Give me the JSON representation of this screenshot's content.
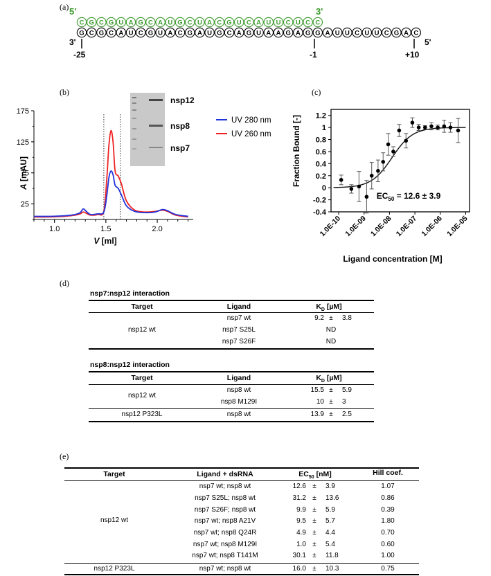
{
  "panel_labels": {
    "a": "(a)",
    "b": "(b)",
    "c": "(c)",
    "d": "(d)",
    "e": "(e)"
  },
  "rna": {
    "top_strand": [
      "C",
      "G",
      "C",
      "G",
      "U",
      "A",
      "G",
      "C",
      "A",
      "U",
      "G",
      "C",
      "U",
      "A",
      "C",
      "G",
      "U",
      "C",
      "A",
      "U",
      "U",
      "C",
      "U",
      "C",
      "C"
    ],
    "bottom_strand": [
      "G",
      "C",
      "G",
      "C",
      "A",
      "U",
      "C",
      "G",
      "U",
      "A",
      "C",
      "G",
      "A",
      "U",
      "G",
      "C",
      "A",
      "G",
      "U",
      "A",
      "A",
      "G",
      "A",
      "G",
      "G",
      "A",
      "U",
      "U",
      "C",
      "U",
      "U",
      "C",
      "G",
      "A",
      "C"
    ],
    "top_5_label": "5'",
    "top_3_label": "3'",
    "bottom_3_label": "3'",
    "bottom_5_label": "5'",
    "pos_left": "-25",
    "pos_mid": "-1",
    "pos_right": "+10",
    "colors": {
      "top": "#3a9a2a",
      "bottom": "#000000"
    }
  },
  "gel": {
    "bands": [
      "nsp12",
      "nsp8",
      "nsp7"
    ]
  },
  "chart_data": [
    {
      "type": "line",
      "panel": "b",
      "ylabel": "A [mAU]",
      "ylabel_italic": "A",
      "ylabel_unit": "[mAU]",
      "xlabel": "V [ml]",
      "xlabel_italic": "V",
      "xlabel_unit": "[ml]",
      "xlim": [
        0.8,
        2.35
      ],
      "ylim": [
        0,
        175
      ],
      "x_ticks": [
        "1.0",
        "1.5",
        "2.0"
      ],
      "y_ticks": [
        "25",
        "75",
        "125",
        "175"
      ],
      "fraction_lines_x": [
        1.48,
        1.64
      ],
      "series": [
        {
          "name": "UV 280 nm",
          "color": "#2233dd",
          "x": [
            0.8,
            0.95,
            1.1,
            1.2,
            1.25,
            1.28,
            1.31,
            1.35,
            1.42,
            1.48,
            1.51,
            1.53,
            1.55,
            1.57,
            1.59,
            1.62,
            1.65,
            1.7,
            1.78,
            1.88,
            1.98,
            2.05,
            2.1,
            2.18,
            2.3
          ],
          "y": [
            5,
            5,
            6,
            8,
            11,
            17,
            13,
            8,
            9,
            12,
            40,
            68,
            78,
            72,
            55,
            50,
            40,
            22,
            13,
            11,
            12,
            16,
            14,
            8,
            5
          ]
        },
        {
          "name": "UV 260 nm",
          "color": "#ee2222",
          "x": [
            0.8,
            0.95,
            1.1,
            1.2,
            1.25,
            1.28,
            1.31,
            1.35,
            1.42,
            1.48,
            1.51,
            1.53,
            1.55,
            1.57,
            1.59,
            1.62,
            1.65,
            1.7,
            1.78,
            1.88,
            1.98,
            2.05,
            2.1,
            2.18,
            2.3
          ],
          "y": [
            4,
            4,
            5,
            7,
            9,
            12,
            10,
            7,
            8,
            13,
            68,
            120,
            143,
            125,
            78,
            70,
            58,
            30,
            15,
            12,
            13,
            15,
            13,
            7,
            4
          ]
        }
      ]
    },
    {
      "type": "scatter",
      "panel": "c",
      "ylabel": "Fraction Bound [-]",
      "xlabel": "Ligand concentration [M]",
      "x_scale": "log",
      "xlim_log10": [
        -10.3,
        -4.85
      ],
      "ylim": [
        -0.4,
        1.3
      ],
      "x_ticks": [
        "1.0E-10",
        "1.0E-09",
        "1.0E-08",
        "1.0E-07",
        "1.0E-06",
        "1.0E-05"
      ],
      "y_ticks": [
        "-0.4",
        "-0.2",
        "0",
        "0.2",
        "0.4",
        "0.6",
        "0.8",
        "1",
        "1.2"
      ],
      "annotation_prefix": "EC",
      "annotation_sub": "50",
      "annotation_value": " = 12.6 ± 3.9",
      "points_log10x": [
        -9.9,
        -9.5,
        -9.2,
        -8.9,
        -8.7,
        -8.45,
        -8.25,
        -8.05,
        -7.85,
        -7.62,
        -7.35,
        -7.1,
        -6.85,
        -6.6,
        -6.35,
        -6.1,
        -5.85,
        -5.6,
        -5.3
      ],
      "points_y": [
        0.13,
        -0.02,
        0.02,
        -0.15,
        0.2,
        0.28,
        0.43,
        0.72,
        0.6,
        0.95,
        0.78,
        1.08,
        1.0,
        1.0,
        1.02,
        1.0,
        1.02,
        1.0,
        0.95
      ],
      "errors": [
        0.08,
        0.07,
        0.25,
        0.27,
        0.22,
        0.18,
        0.15,
        0.18,
        0.08,
        0.1,
        0.12,
        0.08,
        0.05,
        0.03,
        0.06,
        0.04,
        0.1,
        0.08,
        0.2
      ],
      "fit": {
        "bottom": 0.0,
        "top": 1.0,
        "ec50": 1.26e-08,
        "hill": 1.07
      }
    }
  ],
  "table_d": {
    "sections": [
      {
        "title": "nsp7:nsp12 interaction",
        "headers": {
          "target": "Target",
          "ligand": "Ligand",
          "kd_prefix": "K",
          "kd_sub": "D",
          "kd_unit": " [µM]"
        },
        "target_cell": "nsp12 wt",
        "rows": [
          {
            "ligand": "nsp7 wt",
            "value": "9.2",
            "pm": "±",
            "error": "3.8"
          },
          {
            "ligand": "nsp7 S25L",
            "nd": "ND"
          },
          {
            "ligand": "nsp7 S26F",
            "nd": "ND"
          }
        ]
      },
      {
        "title": "nsp8:nsp12 interaction",
        "headers": {
          "target": "Target",
          "ligand": "Ligand",
          "kd_prefix": "K",
          "kd_sub": "D",
          "kd_unit": " [µM]"
        },
        "rows": [
          {
            "ligand": "nsp8 wt",
            "value": "15.5",
            "pm": "±",
            "error": "5.9"
          },
          {
            "ligand": "nsp8 M129I",
            "value": "10",
            "pm": "±",
            "error": "3"
          },
          {
            "ligand": "nsp8 wt",
            "value": "13.9",
            "pm": "±",
            "error": "2.5"
          }
        ],
        "targets": [
          "nsp12 wt",
          "nsp12 P323L"
        ]
      }
    ]
  },
  "table_e": {
    "headers": {
      "target": "Target",
      "ligand": "Ligand + dsRNA",
      "ec_prefix": "EC",
      "ec_sub": "50",
      "ec_unit": " [nM]",
      "hill": "Hill coef."
    },
    "targets": [
      "nsp12 wt",
      "nsp12 P323L"
    ],
    "rows": [
      {
        "ligand": "nsp7 wt; nsp8 wt",
        "value": "12.6",
        "pm": "±",
        "error": "3.9",
        "hill": "1.07"
      },
      {
        "ligand": "nsp7 S25L; nsp8 wt",
        "value": "31.2",
        "pm": "±",
        "error": "13.6",
        "hill": "0.86"
      },
      {
        "ligand": "nsp7 S26F; nsp8 wt",
        "value": "9.9",
        "pm": "±",
        "error": "5.9",
        "hill": "0.39"
      },
      {
        "ligand": "nsp7 wt; nsp8 A21V",
        "value": "9.5",
        "pm": "±",
        "error": "5.7",
        "hill": "1.80"
      },
      {
        "ligand": "nsp7 wt; nsp8 Q24R",
        "value": "4.9",
        "pm": "±",
        "error": "4.4",
        "hill": "0.70"
      },
      {
        "ligand": "nsp7 wt; nsp8 M129I",
        "value": "1.0",
        "pm": "±",
        "error": "5.4",
        "hill": "0.60"
      },
      {
        "ligand": "nsp7 wt; nsp8 T141M",
        "value": "30.1",
        "pm": "±",
        "error": "11.8",
        "hill": "1.00"
      },
      {
        "ligand": "nsp7 wt; nsp8 wt",
        "value": "16.0",
        "pm": "±",
        "error": "10.3",
        "hill": "0.75"
      }
    ]
  }
}
